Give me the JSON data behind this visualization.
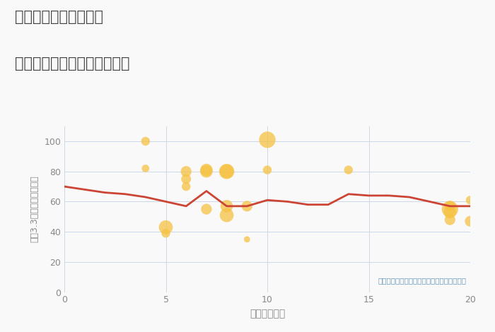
{
  "title_line1": "三重県松阪市肥留町の",
  "title_line2": "駅距離別中古マンション価格",
  "xlabel": "駅距離（分）",
  "ylabel": "平（3.3㎡）単価（万円）",
  "annotation": "円の大きさは、取引のあった物件面積を示す",
  "xlim": [
    0,
    20
  ],
  "ylim": [
    0,
    110
  ],
  "yticks": [
    0,
    20,
    40,
    60,
    80,
    100
  ],
  "xticks": [
    0,
    5,
    10,
    15,
    20
  ],
  "line_x": [
    0,
    1,
    2,
    3,
    4,
    5,
    6,
    7,
    8,
    9,
    10,
    11,
    12,
    13,
    14,
    15,
    16,
    17,
    18,
    19,
    20
  ],
  "line_y": [
    70,
    68,
    66,
    65,
    63,
    60,
    57,
    67,
    57,
    57,
    61,
    60,
    58,
    58,
    65,
    64,
    64,
    63,
    60,
    57,
    57
  ],
  "line_color": "#cc4433",
  "line_width": 2.0,
  "scatter_x": [
    4,
    4,
    5,
    5,
    6,
    6,
    6,
    7,
    7,
    7,
    8,
    8,
    8,
    8,
    9,
    9,
    10,
    10,
    14,
    19,
    19,
    19,
    19,
    20,
    20
  ],
  "scatter_y": [
    100,
    82,
    43,
    39,
    80,
    75,
    70,
    81,
    80,
    55,
    80,
    80,
    57,
    51,
    57,
    35,
    101,
    81,
    81,
    57,
    55,
    53,
    48,
    61,
    47
  ],
  "scatter_size": [
    80,
    60,
    200,
    80,
    120,
    100,
    80,
    160,
    160,
    120,
    240,
    200,
    160,
    200,
    120,
    40,
    280,
    80,
    80,
    120,
    280,
    160,
    120,
    80,
    120
  ],
  "scatter_color": "#f5c242",
  "scatter_alpha": 0.75,
  "background_color": "#f9f9f9",
  "grid_color": "#ccd8e8",
  "title_color": "#444444",
  "annotation_color": "#6699bb",
  "ylabel_color": "#888888",
  "xlabel_color": "#888888",
  "tick_color": "#888888"
}
